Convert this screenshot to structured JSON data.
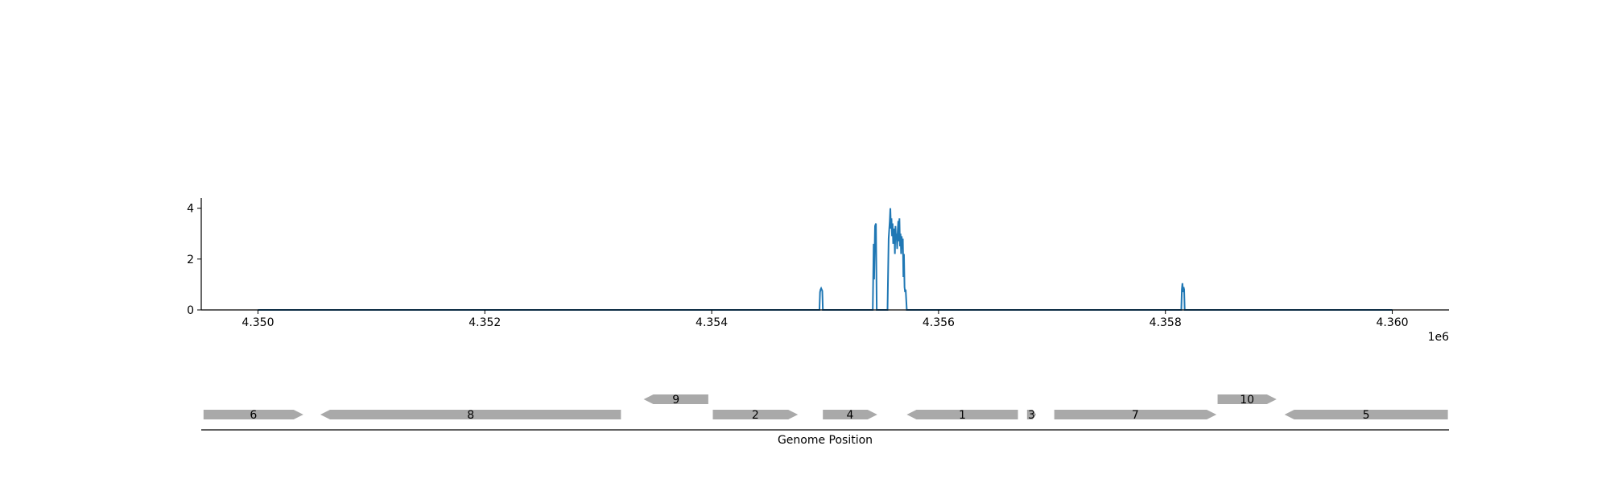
{
  "chart_data": [
    {
      "type": "line",
      "xlim": [
        4349500,
        4360500
      ],
      "ylim": [
        0,
        4.4
      ],
      "x_ticks": [
        4350000,
        4352000,
        4354000,
        4356000,
        4358000,
        4360000
      ],
      "x_tick_labels": [
        "4.350",
        "4.352",
        "4.354",
        "4.356",
        "4.358",
        "4.360"
      ],
      "x_offset_label": "1e6",
      "y_ticks": [
        0,
        2,
        4
      ],
      "y_tick_labels": [
        "0",
        "2",
        "4"
      ],
      "grid": false,
      "series": [
        {
          "color": "#1f77b4",
          "x": [
            4350000,
            4354950,
            4354955,
            4354960,
            4354965,
            4354970,
            4354975,
            4354980,
            4355420,
            4355428,
            4355432,
            4355440,
            4355448,
            4355455,
            4355462,
            4355470,
            4355480,
            4355550,
            4355560,
            4355570,
            4355575,
            4355580,
            4355585,
            4355590,
            4355595,
            4355600,
            4355605,
            4355610,
            4355615,
            4355620,
            4355625,
            4355630,
            4355635,
            4355640,
            4355645,
            4355650,
            4355655,
            4355660,
            4355665,
            4355670,
            4355675,
            4355680,
            4355685,
            4355690,
            4355695,
            4355700,
            4355705,
            4355710,
            4355720,
            4358140,
            4358145,
            4358150,
            4358155,
            4358160,
            4358165,
            4358170,
            4360000
          ],
          "y": [
            0,
            0,
            0.7,
            0.8,
            0.85,
            0.8,
            0.75,
            0,
            0,
            2.6,
            1.2,
            3.3,
            3.4,
            0,
            0,
            0,
            0,
            0,
            2.8,
            3.5,
            4.0,
            3.2,
            3.6,
            2.9,
            3.4,
            2.6,
            3.0,
            3.2,
            2.2,
            3.3,
            2.8,
            3.0,
            2.4,
            3.1,
            3.5,
            2.7,
            3.6,
            2.5,
            3.0,
            2.2,
            2.9,
            2.4,
            2.8,
            1.3,
            2.2,
            0.9,
            0.7,
            0.8,
            0,
            0,
            0.8,
            1.05,
            0.7,
            0.9,
            0.8,
            0,
            0
          ]
        }
      ]
    },
    {
      "type": "gene-track",
      "xlabel": "Genome Position",
      "xlim": [
        4349500,
        4360500
      ],
      "genes": [
        {
          "label": "6",
          "start": 4349520,
          "end": 4350400,
          "strand": 1,
          "row": 0
        },
        {
          "label": "8",
          "start": 4350550,
          "end": 4353200,
          "strand": -1,
          "row": 0
        },
        {
          "label": "9",
          "start": 4353400,
          "end": 4353970,
          "strand": -1,
          "row": 1
        },
        {
          "label": "2",
          "start": 4354010,
          "end": 4354760,
          "strand": 1,
          "row": 0
        },
        {
          "label": "4",
          "start": 4354980,
          "end": 4355460,
          "strand": 1,
          "row": 0
        },
        {
          "label": "1",
          "start": 4355720,
          "end": 4356700,
          "strand": -1,
          "row": 0
        },
        {
          "label": "3",
          "start": 4356780,
          "end": 4356860,
          "strand": 1,
          "row": 0
        },
        {
          "label": "7",
          "start": 4357020,
          "end": 4358450,
          "strand": 1,
          "row": 0
        },
        {
          "label": "10",
          "start": 4358460,
          "end": 4358980,
          "strand": 1,
          "row": 1
        },
        {
          "label": "5",
          "start": 4359050,
          "end": 4360490,
          "strand": -1,
          "row": 0
        }
      ],
      "gene_color": "#a9a9a9"
    }
  ]
}
